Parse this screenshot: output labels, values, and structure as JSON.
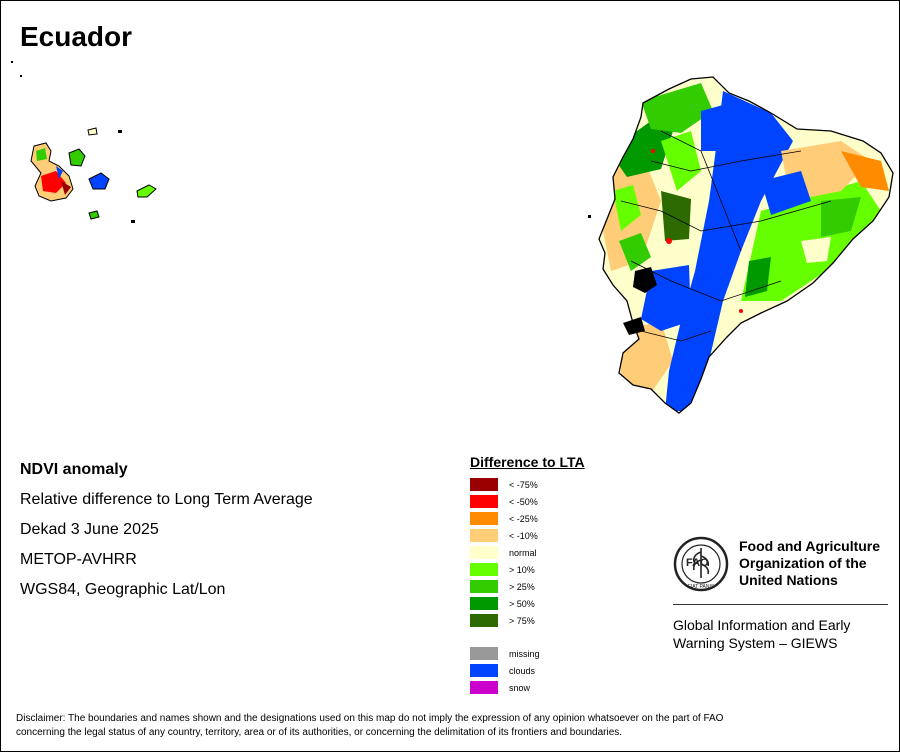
{
  "title": "Ecuador",
  "info": {
    "heading": "NDVI anomaly",
    "line1": "Relative difference to Long Term Average",
    "line2": "Dekad 3 June 2025",
    "line3": "METOP-AVHRR",
    "line4": "WGS84, Geographic Lat/Lon"
  },
  "legend": {
    "title": "Difference to LTA",
    "items": [
      {
        "label": "< -75%",
        "color": "#990000"
      },
      {
        "label": "< -50%",
        "color": "#ff0000"
      },
      {
        "label": "< -25%",
        "color": "#ff8c00"
      },
      {
        "label": "< -10%",
        "color": "#ffcc77"
      },
      {
        "label": "normal",
        "color": "#ffffcc"
      },
      {
        "label": "> 10%",
        "color": "#66ff00"
      },
      {
        "label": "> 25%",
        "color": "#33cc00"
      },
      {
        "label": "> 50%",
        "color": "#009900"
      },
      {
        "label": "> 75%",
        "color": "#2d6a00"
      }
    ],
    "extra": [
      {
        "label": "missing",
        "color": "#999999"
      },
      {
        "label": "clouds",
        "color": "#0044ff"
      },
      {
        "label": "snow",
        "color": "#cc00cc"
      }
    ]
  },
  "fao": {
    "name_line1": "Food and Agriculture",
    "name_line2": "Organization of the",
    "name_line3": "United Nations",
    "logo_text_top": "FAO",
    "logo_text_bottom": "FIAT PANIS",
    "giews_line1": "Global Information and Early",
    "giews_line2": "Warning System – GIEWS"
  },
  "disclaimer": {
    "line1": "Disclaimer: The boundaries and names shown and the designations used on this map do not imply the expression of any opinion whatsoever on the part of FAO",
    "line2": "concerning the legal status of any country, territory, area or of its authorities, or concerning the delimitation of its frontiers and boundaries."
  }
}
